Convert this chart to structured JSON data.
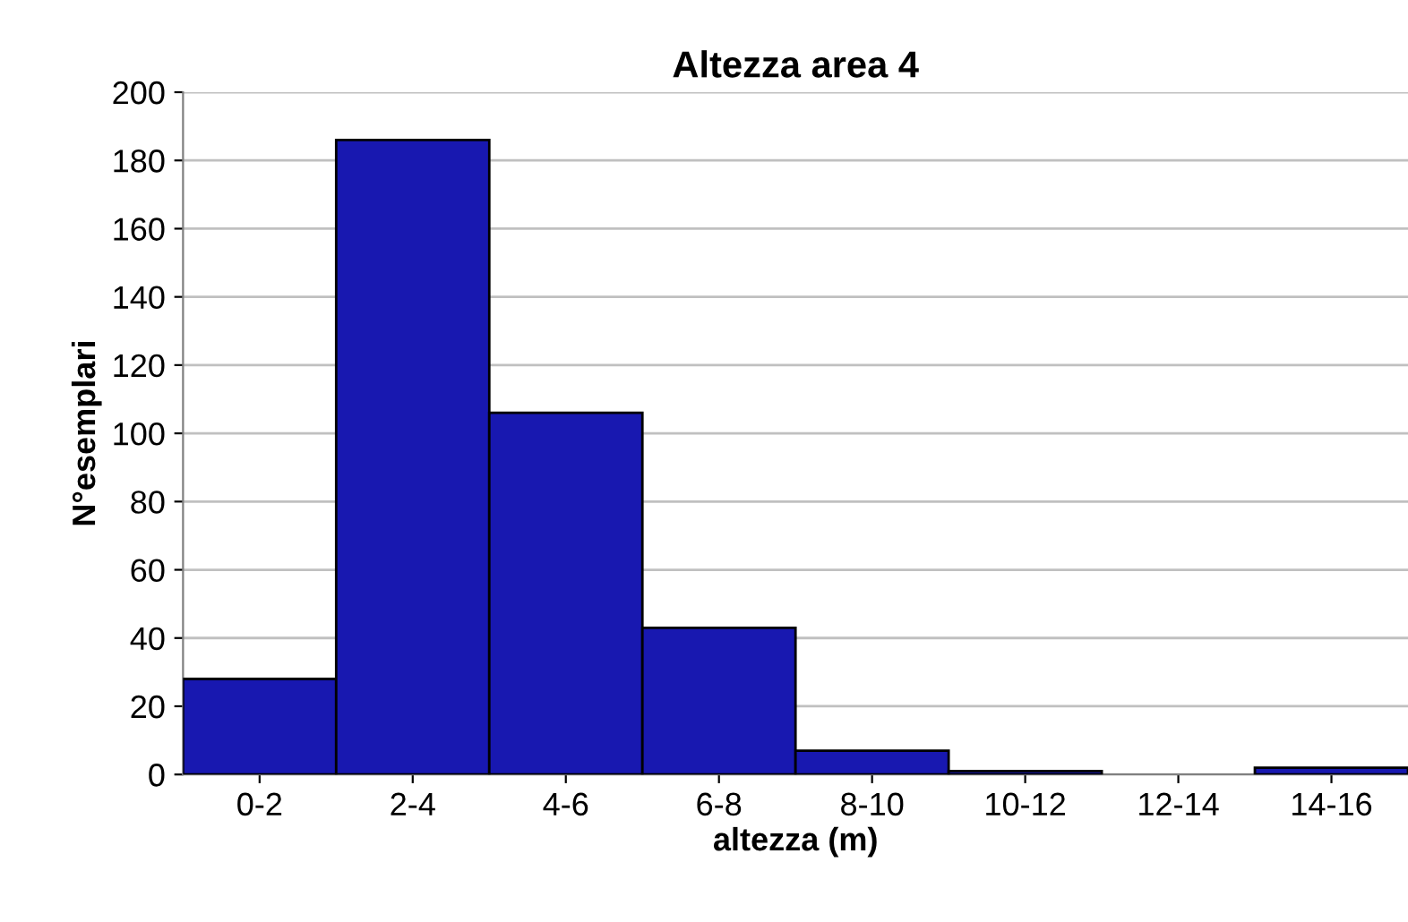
{
  "chart_data": {
    "type": "bar",
    "title": "Altezza area 4",
    "xlabel": "altezza (m)",
    "ylabel": "N°esemplari",
    "categories": [
      "0-2",
      "2-4",
      "4-6",
      "6-8",
      "8-10",
      "10-12",
      "12-14",
      "14-16"
    ],
    "values": [
      28,
      186,
      106,
      43,
      7,
      1,
      0,
      2
    ],
    "color": "#1818b0",
    "ylim": [
      0,
      200
    ],
    "yticks": [
      0,
      20,
      40,
      60,
      80,
      100,
      120,
      140,
      160,
      180,
      200
    ],
    "grid": "y"
  }
}
